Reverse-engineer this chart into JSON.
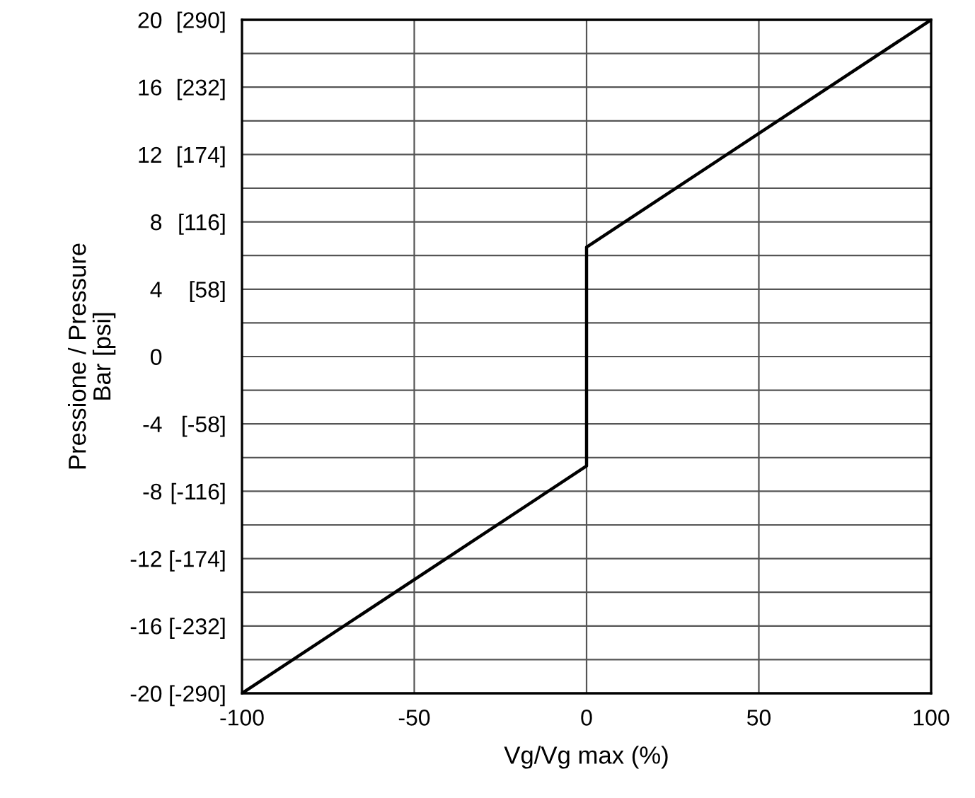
{
  "chart_data": {
    "type": "line",
    "xlabel": "Vg/Vg max (%)",
    "ylabel": "Pressione / Pressure\nBar [psi]",
    "series": [
      {
        "color": "#000000",
        "x": [
          -100,
          0,
          0,
          100
        ],
        "values": [
          -20,
          -6.5,
          6.5,
          20
        ]
      }
    ],
    "xlim": [
      -100,
      100
    ],
    "ylim": [
      -20,
      20
    ],
    "xticks": [
      -100,
      -50,
      0,
      50,
      100
    ],
    "yticks": [
      -20,
      {
        "value": -18,
        "label": null
      },
      -16,
      {
        "value": -14,
        "label": null
      },
      -12,
      {
        "value": -10,
        "label": null
      },
      -8,
      {
        "value": -6,
        "label": null
      },
      -4,
      {
        "value": -2,
        "label": null
      },
      0,
      {
        "value": 2,
        "label": null
      },
      4,
      {
        "value": 6,
        "label": null
      },
      8,
      {
        "value": 10,
        "label": null
      },
      12,
      {
        "value": 14,
        "label": null
      },
      16,
      {
        "value": 18,
        "label": null
      },
      20
    ],
    "y2lim": [
      -290,
      290
    ],
    "y2ticks": [
      {
        "value": -290,
        "label": "[-290]"
      },
      {
        "value": -232,
        "label": "[-232]"
      },
      {
        "value": -174,
        "label": "[-174]"
      },
      {
        "value": -116,
        "label": "[-116]"
      },
      {
        "value": -58,
        "label": "[-58]"
      },
      {
        "value": 0,
        "label": null
      },
      {
        "value": 58,
        "label": "[58]"
      },
      {
        "value": 116,
        "label": "[116]"
      },
      {
        "value": 174,
        "label": "[174]"
      },
      {
        "value": 232,
        "label": "[232]"
      },
      {
        "value": 290,
        "label": "[290]"
      }
    ],
    "grid": true,
    "marker": "none",
    "line_style": "solid"
  }
}
